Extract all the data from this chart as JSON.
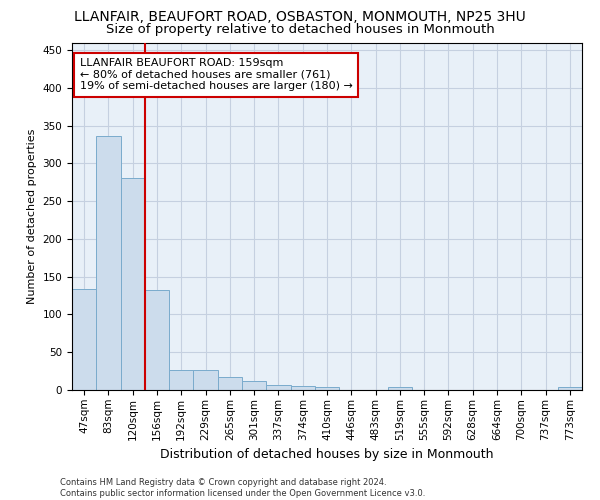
{
  "title": "LLANFAIR, BEAUFORT ROAD, OSBASTON, MONMOUTH, NP25 3HU",
  "subtitle": "Size of property relative to detached houses in Monmouth",
  "xlabel": "Distribution of detached houses by size in Monmouth",
  "ylabel": "Number of detached properties",
  "bar_color": "#ccdcec",
  "bar_edge_color": "#7aabcc",
  "categories": [
    "47sqm",
    "83sqm",
    "120sqm",
    "156sqm",
    "192sqm",
    "229sqm",
    "265sqm",
    "301sqm",
    "337sqm",
    "374sqm",
    "410sqm",
    "446sqm",
    "483sqm",
    "519sqm",
    "555sqm",
    "592sqm",
    "628sqm",
    "664sqm",
    "700sqm",
    "737sqm",
    "773sqm"
  ],
  "values": [
    134,
    336,
    281,
    133,
    27,
    27,
    17,
    12,
    7,
    5,
    4,
    0,
    0,
    4,
    0,
    0,
    0,
    0,
    0,
    0,
    4
  ],
  "ylim": [
    0,
    460
  ],
  "yticks": [
    0,
    50,
    100,
    150,
    200,
    250,
    300,
    350,
    400,
    450
  ],
  "vline_x_idx": 3,
  "vline_color": "#cc0000",
  "annotation_line1": "LLANFAIR BEAUFORT ROAD: 159sqm",
  "annotation_line2": "← 80% of detached houses are smaller (761)",
  "annotation_line3": "19% of semi-detached houses are larger (180) →",
  "annotation_box_color": "#ffffff",
  "annotation_box_edge": "#cc0000",
  "footer": "Contains HM Land Registry data © Crown copyright and database right 2024.\nContains public sector information licensed under the Open Government Licence v3.0.",
  "bg_color": "#ffffff",
  "plot_bg_color": "#e8f0f8",
  "grid_color": "#c5d0e0",
  "title_fontsize": 10,
  "subtitle_fontsize": 9.5,
  "xlabel_fontsize": 9,
  "ylabel_fontsize": 8,
  "tick_fontsize": 7.5,
  "annotation_fontsize": 8,
  "footer_fontsize": 6
}
